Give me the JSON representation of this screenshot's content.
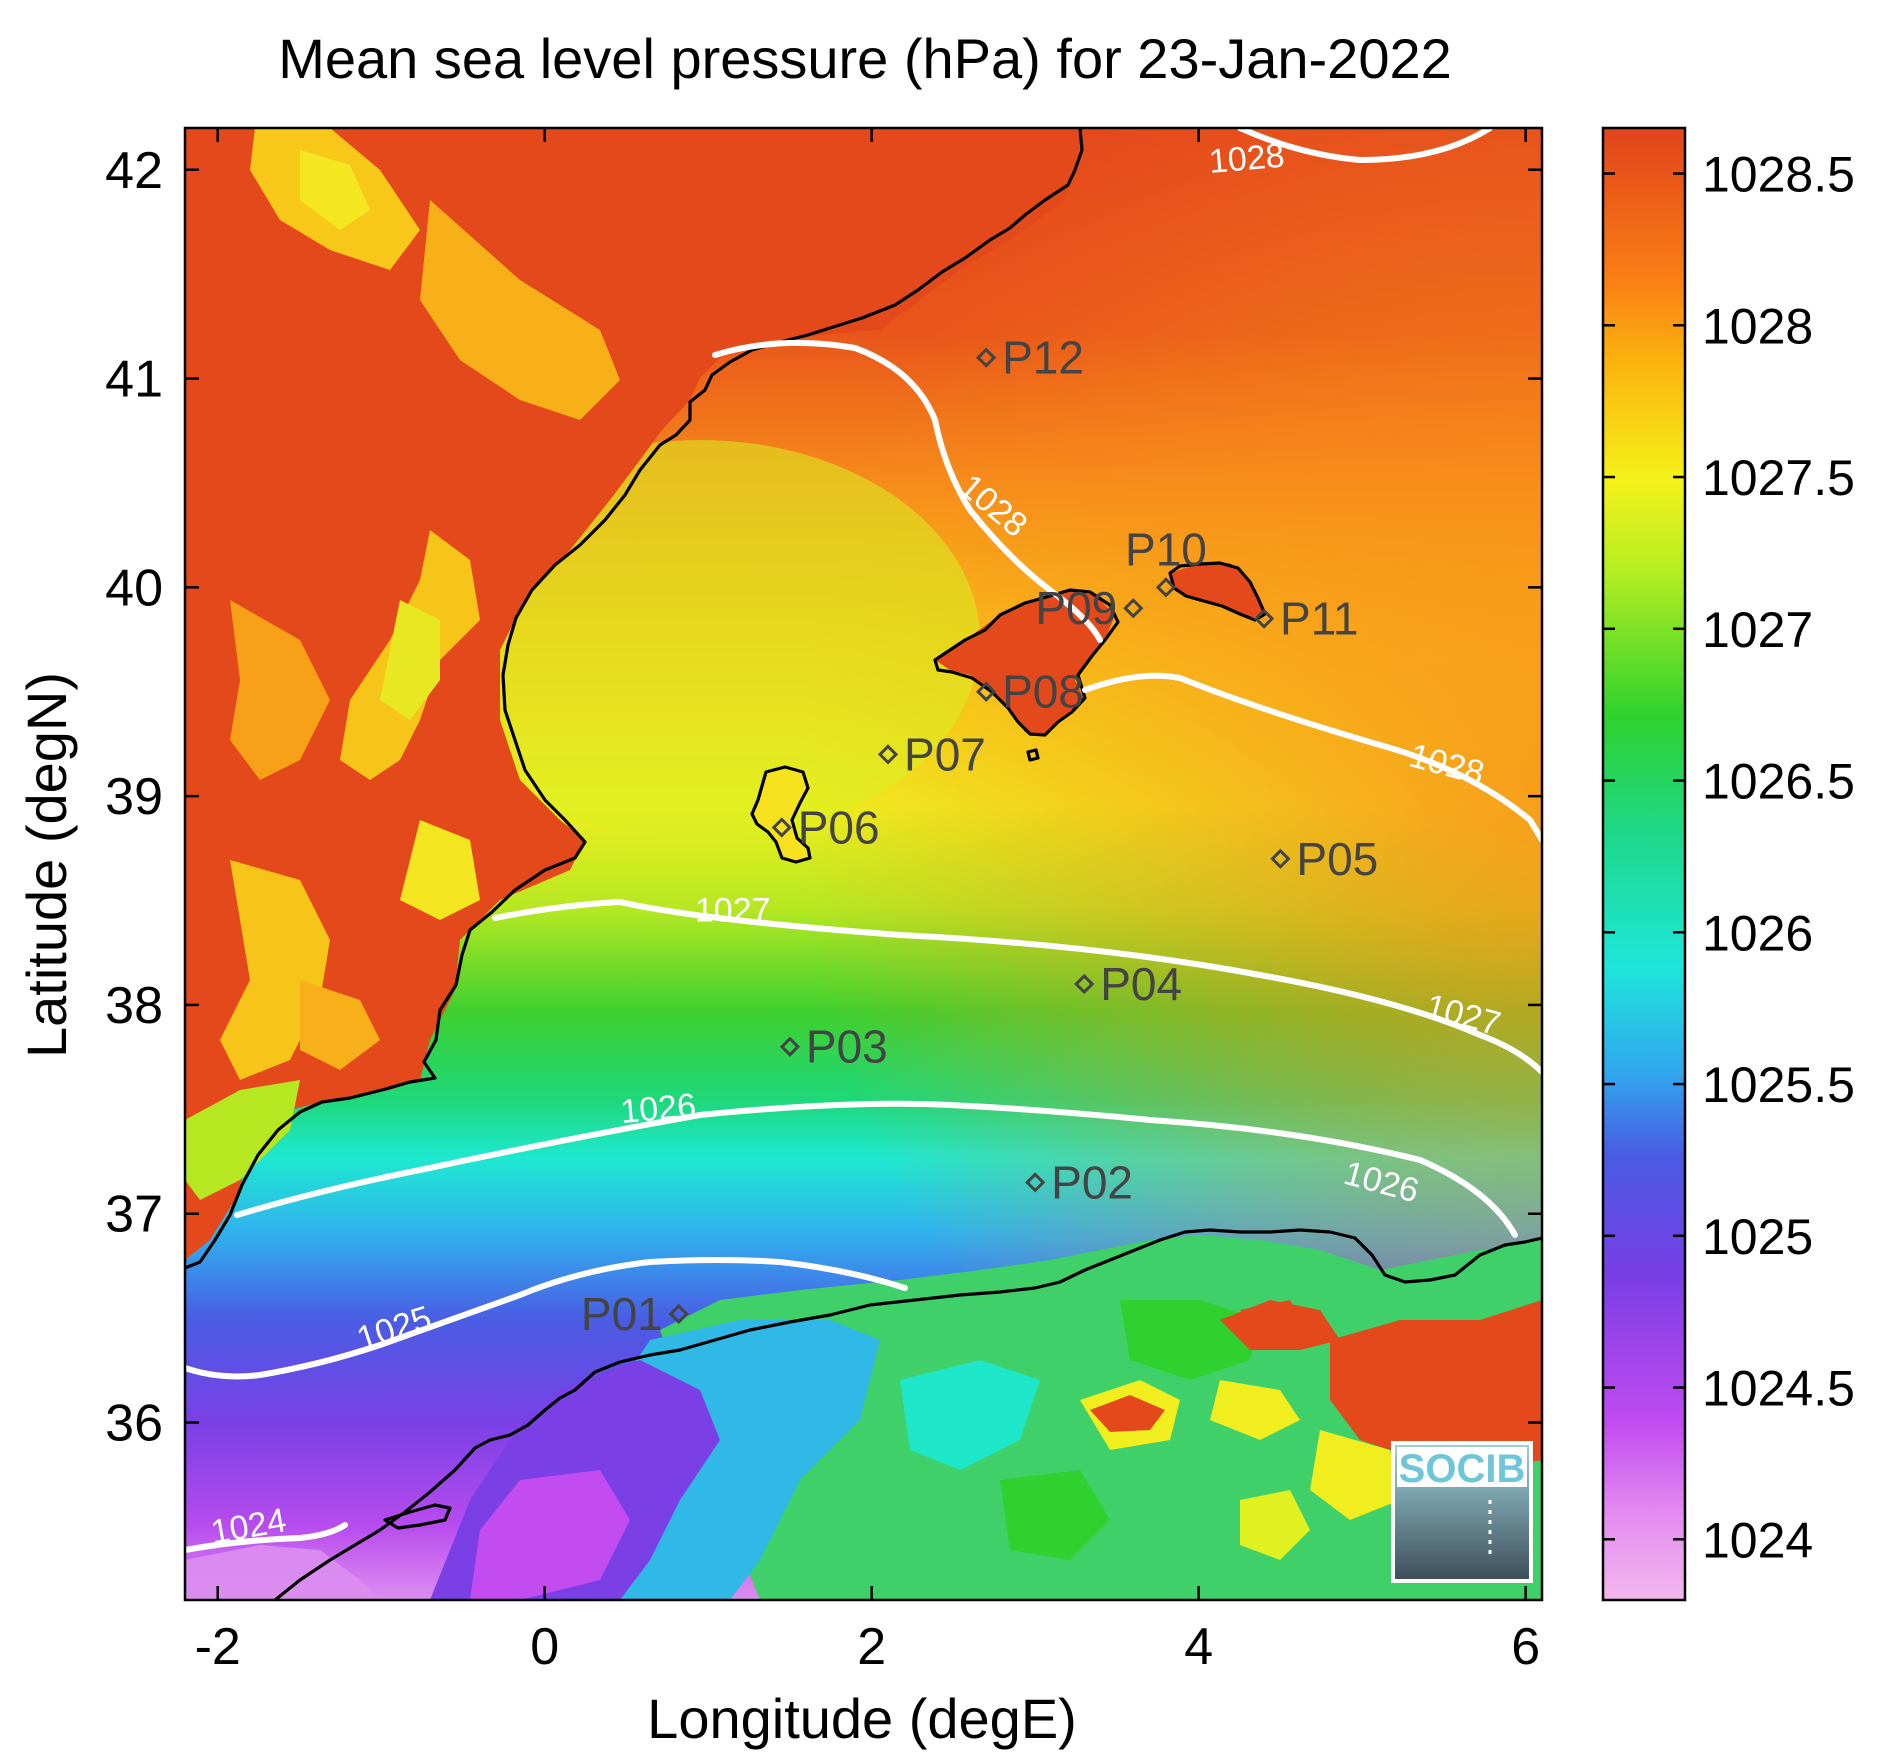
{
  "title": "Mean sea level pressure (hPa) for 23-Jan-2022",
  "xlabel": "Longitude (degE)",
  "ylabel": "Latitude (degN)",
  "xlim": [
    -2.2,
    6.1
  ],
  "ylim": [
    35.15,
    42.2
  ],
  "xticks": [
    -2,
    0,
    2,
    4,
    6
  ],
  "yticks": [
    36,
    37,
    38,
    39,
    40,
    41,
    42
  ],
  "xtick_labels": [
    "-2",
    "0",
    "2",
    "4",
    "6"
  ],
  "ytick_labels": [
    "36",
    "37",
    "38",
    "39",
    "40",
    "41",
    "42"
  ],
  "colorbar": {
    "range": [
      1023.8,
      1028.65
    ],
    "ticks": [
      1024,
      1024.5,
      1025,
      1025.5,
      1026,
      1026.5,
      1027,
      1027.5,
      1028,
      1028.5
    ],
    "tick_labels": [
      "1024",
      "1024.5",
      "1025",
      "1025.5",
      "1026",
      "1026.5",
      "1027",
      "1027.5",
      "1028",
      "1028.5"
    ],
    "colors": [
      "#f2b8ee",
      "#d65af0",
      "#8a3de6",
      "#4a58e4",
      "#30a8ee",
      "#1ee8d6",
      "#1ed88a",
      "#2ed12e",
      "#b6ee22",
      "#f4f21a",
      "#fbbd0e",
      "#fa8410",
      "#e44a1c"
    ]
  },
  "stations": [
    {
      "name": "P01",
      "lon": 0.82,
      "lat": 36.52,
      "label_side": "left"
    },
    {
      "name": "P02",
      "lon": 3.0,
      "lat": 37.15,
      "label_side": "right"
    },
    {
      "name": "P03",
      "lon": 1.5,
      "lat": 37.8,
      "label_side": "right"
    },
    {
      "name": "P04",
      "lon": 3.3,
      "lat": 38.1,
      "label_side": "right"
    },
    {
      "name": "P05",
      "lon": 4.5,
      "lat": 38.7,
      "label_side": "right"
    },
    {
      "name": "P06",
      "lon": 1.45,
      "lat": 38.85,
      "label_side": "right"
    },
    {
      "name": "P07",
      "lon": 2.1,
      "lat": 39.2,
      "label_side": "right"
    },
    {
      "name": "P08",
      "lon": 2.7,
      "lat": 39.5,
      "label_side": "right"
    },
    {
      "name": "P09",
      "lon": 3.6,
      "lat": 39.9,
      "label_side": "left"
    },
    {
      "name": "P10",
      "lon": 3.8,
      "lat": 40.0,
      "label_side": "above"
    },
    {
      "name": "P11",
      "lon": 4.4,
      "lat": 39.85,
      "label_side": "right"
    },
    {
      "name": "P12",
      "lon": 2.7,
      "lat": 41.1,
      "label_side": "right"
    }
  ],
  "contour_labels": [
    {
      "text": "1028",
      "lon": 4.3,
      "lat": 42.0,
      "angle": -5
    },
    {
      "text": "1028",
      "lon": 2.7,
      "lat": 40.35,
      "angle": 40
    },
    {
      "text": "1028",
      "lon": 5.5,
      "lat": 39.1,
      "angle": 15
    },
    {
      "text": "1027",
      "lon": 1.15,
      "lat": 38.4,
      "angle": 0
    },
    {
      "text": "1027",
      "lon": 5.6,
      "lat": 37.9,
      "angle": 15
    },
    {
      "text": "1026",
      "lon": 0.7,
      "lat": 37.45,
      "angle": -5
    },
    {
      "text": "1026",
      "lon": 5.1,
      "lat": 37.1,
      "angle": 15
    },
    {
      "text": "1025",
      "lon": -0.9,
      "lat": 36.4,
      "angle": -18
    },
    {
      "text": "1024",
      "lon": -1.8,
      "lat": 35.45,
      "angle": -10
    }
  ],
  "logo_text": "SOCIB"
}
